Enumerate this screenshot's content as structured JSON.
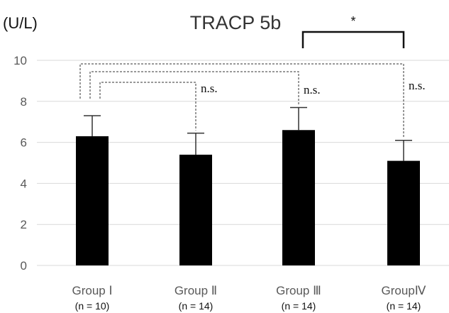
{
  "chart_data": {
    "type": "bar",
    "title": "TRACP 5b",
    "ylabel": "(U/L)",
    "ylim": [
      0,
      10
    ],
    "yticks": [
      "0",
      "2",
      "4",
      "6",
      "8",
      "10"
    ],
    "categories": [
      "Group Ⅰ",
      "Group Ⅱ",
      "Group Ⅲ",
      "GroupⅣ"
    ],
    "sample_sizes": [
      "(n = 10)",
      "(n = 14)",
      "(n = 14)",
      "(n = 14)"
    ],
    "values": [
      6.3,
      5.4,
      6.6,
      5.1
    ],
    "error_upper": [
      1.0,
      1.05,
      1.1,
      1.0
    ],
    "bar_color": "#000000",
    "gridlines": true,
    "comparisons": [
      {
        "groups": [
          0,
          1
        ],
        "label": "n.s.",
        "style": "dashed",
        "level": 1
      },
      {
        "groups": [
          0,
          2
        ],
        "label": "n.s.",
        "style": "dashed",
        "level": 2
      },
      {
        "groups": [
          0,
          3
        ],
        "label": "n.s.",
        "style": "dashed",
        "level": 3
      },
      {
        "groups": [
          2,
          3
        ],
        "label": "*",
        "style": "solid",
        "level": 4
      }
    ]
  }
}
